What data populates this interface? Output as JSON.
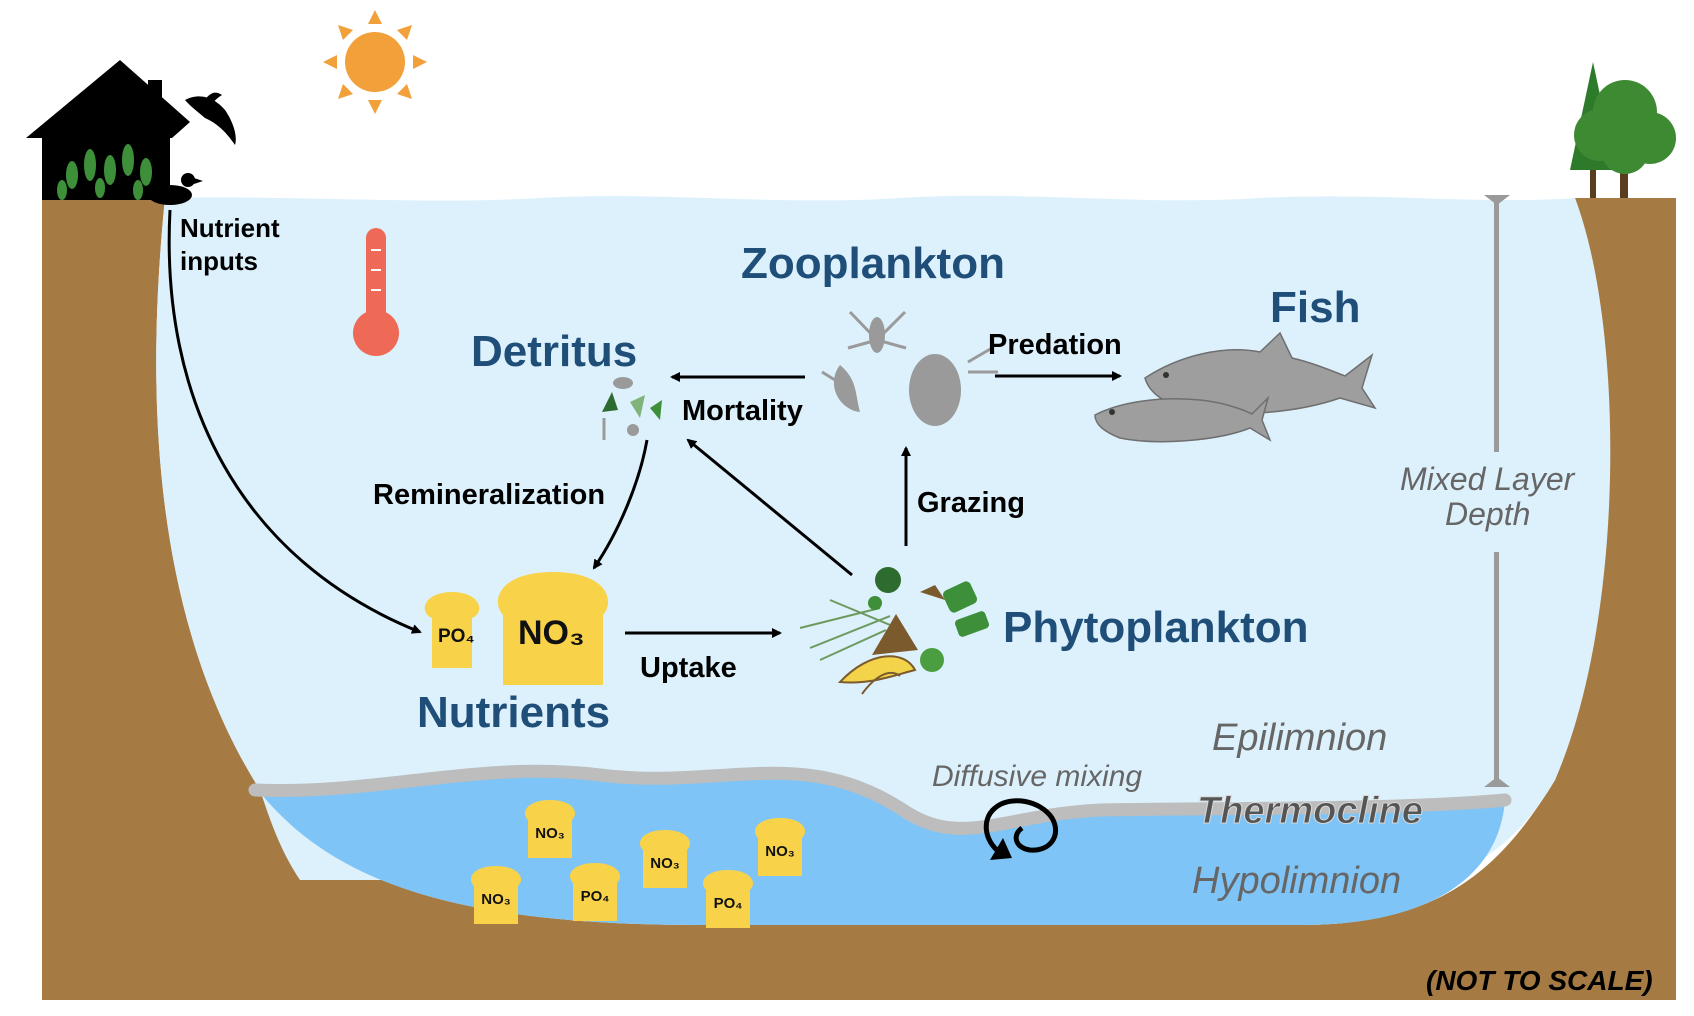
{
  "labels": {
    "nutrient_inputs_line1": "Nutrient",
    "nutrient_inputs_line2": "inputs",
    "zooplankton": "Zooplankton",
    "fish": "Fish",
    "detritus": "Detritus",
    "predation": "Predation",
    "mortality": "Mortality",
    "remineralization": "Remineralization",
    "grazing": "Grazing",
    "phytoplankton": "Phytoplankton",
    "uptake": "Uptake",
    "nutrients": "Nutrients",
    "mixed_layer_line1": "Mixed Layer",
    "mixed_layer_line2": "Depth",
    "epilimnion": "Epilimnion",
    "diffusive_mixing": "Diffusive mixing",
    "thermocline": "Thermocline",
    "hypolimnion": "Hypolimnion",
    "not_to_scale": "(NOT TO SCALE)"
  },
  "nutrients_main": {
    "po4": "PO₄",
    "no3": "NO₃"
  },
  "hypolimnion_nutrients": [
    "NO₃",
    "NO₃",
    "NO₃",
    "NO₃",
    "PO₄",
    "PO₄"
  ],
  "colors": {
    "soil": "#a57b43",
    "epilimnion_water": "#ddf1fc",
    "hypolimnion_water": "#7ec4f6",
    "thermocline": "#bdbdbd",
    "heading_blue": "#1f4e79",
    "nutrient_yellow": "#f8d34a",
    "sun": "#f2a03a",
    "thermometer": "#ee6a57",
    "fish_gray": "#9e9e9e",
    "tree_green": "#3e8a33"
  }
}
